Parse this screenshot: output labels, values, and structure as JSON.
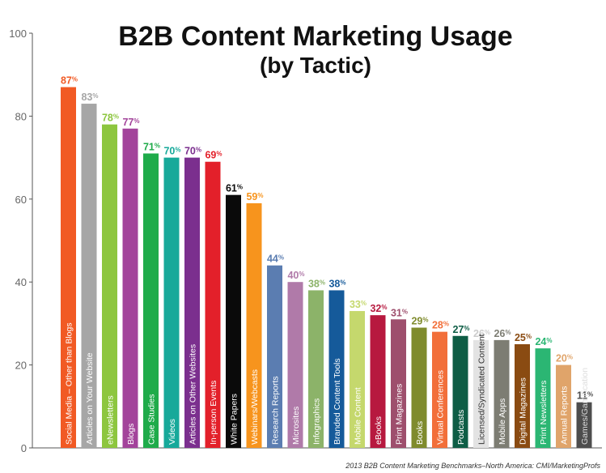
{
  "chart_data": {
    "type": "bar",
    "title": "B2B Content Marketing Usage",
    "subtitle": "(by Tactic)",
    "source": "2013 B2B Content Marketing Benchmarks–North America: CMI/MarketingProfs",
    "ylim": [
      0,
      100
    ],
    "yticks": [
      "0",
      "20",
      "40",
      "60",
      "80",
      "100"
    ],
    "value_suffix": "%",
    "grid": false,
    "bars": [
      {
        "label": "Social Media – Other than Blogs",
        "value": 87,
        "color": "#f15a24",
        "label_color": "#ffffff"
      },
      {
        "label": "Articles on Your Website",
        "value": 83,
        "color": "#a6a6a6",
        "label_color": "#ffffff"
      },
      {
        "label": "eNewsletters",
        "value": 78,
        "color": "#8dc63f",
        "label_color": "#ffffff"
      },
      {
        "label": "Blogs",
        "value": 77,
        "color": "#a3449b",
        "label_color": "#ffffff"
      },
      {
        "label": "Case Studies",
        "value": 71,
        "color": "#1fab4a",
        "label_color": "#ffffff"
      },
      {
        "label": "Videos",
        "value": 70,
        "color": "#17a99a",
        "label_color": "#ffffff"
      },
      {
        "label": "Articles on Other Websites",
        "value": 70,
        "color": "#7b2f8e",
        "label_color": "#ffffff"
      },
      {
        "label": "In-person Events",
        "value": 69,
        "color": "#e3202a",
        "label_color": "#ffffff"
      },
      {
        "label": "White Papers",
        "value": 61,
        "color": "#0a0a0a",
        "label_color": "#ffffff"
      },
      {
        "label": "Webinars/Webcasts",
        "value": 59,
        "color": "#f7941d",
        "label_color": "#ffffff"
      },
      {
        "label": "Research Reports",
        "value": 44,
        "color": "#5b7db1",
        "label_color": "#ffffff"
      },
      {
        "label": "Microsites",
        "value": 40,
        "color": "#b07aa9",
        "label_color": "#ffffff"
      },
      {
        "label": "Infographics",
        "value": 38,
        "color": "#8cb369",
        "label_color": "#ffffff"
      },
      {
        "label": "Branded Content Tools",
        "value": 38,
        "color": "#155a9a",
        "label_color": "#ffffff"
      },
      {
        "label": "Mobile Content",
        "value": 33,
        "color": "#c5d86d",
        "label_color": "#ffffff"
      },
      {
        "label": "eBooks",
        "value": 32,
        "color": "#b7193f",
        "label_color": "#ffffff"
      },
      {
        "label": "Print Magazines",
        "value": 31,
        "color": "#9e4f6d",
        "label_color": "#ffffff"
      },
      {
        "label": "Books",
        "value": 29,
        "color": "#7f8b2d",
        "label_color": "#ffffff"
      },
      {
        "label": "Virtual Conferences",
        "value": 28,
        "color": "#f26f3a",
        "label_color": "#ffffff"
      },
      {
        "label": "Podcasts",
        "value": 27,
        "color": "#0e5d45",
        "label_color": "#ffffff"
      },
      {
        "label": "Licensed/Syndicated Content",
        "value": 26,
        "color": "#e3e3e3",
        "label_color": "#333333"
      },
      {
        "label": "Mobile Apps",
        "value": 26,
        "color": "#7d7d73",
        "label_color": "#ffffff"
      },
      {
        "label": "Digital Magazines",
        "value": 25,
        "color": "#8a4b12",
        "label_color": "#ffffff"
      },
      {
        "label": "Print Newsletters",
        "value": 24,
        "color": "#2bb673",
        "label_color": "#ffffff"
      },
      {
        "label": "Annual Reports",
        "value": 20,
        "color": "#e0a46a",
        "label_color": "#ffffff"
      },
      {
        "label": "Games/Gamification",
        "value": 11,
        "color": "#4d4d4d",
        "label_color": "#dddddd"
      }
    ]
  }
}
